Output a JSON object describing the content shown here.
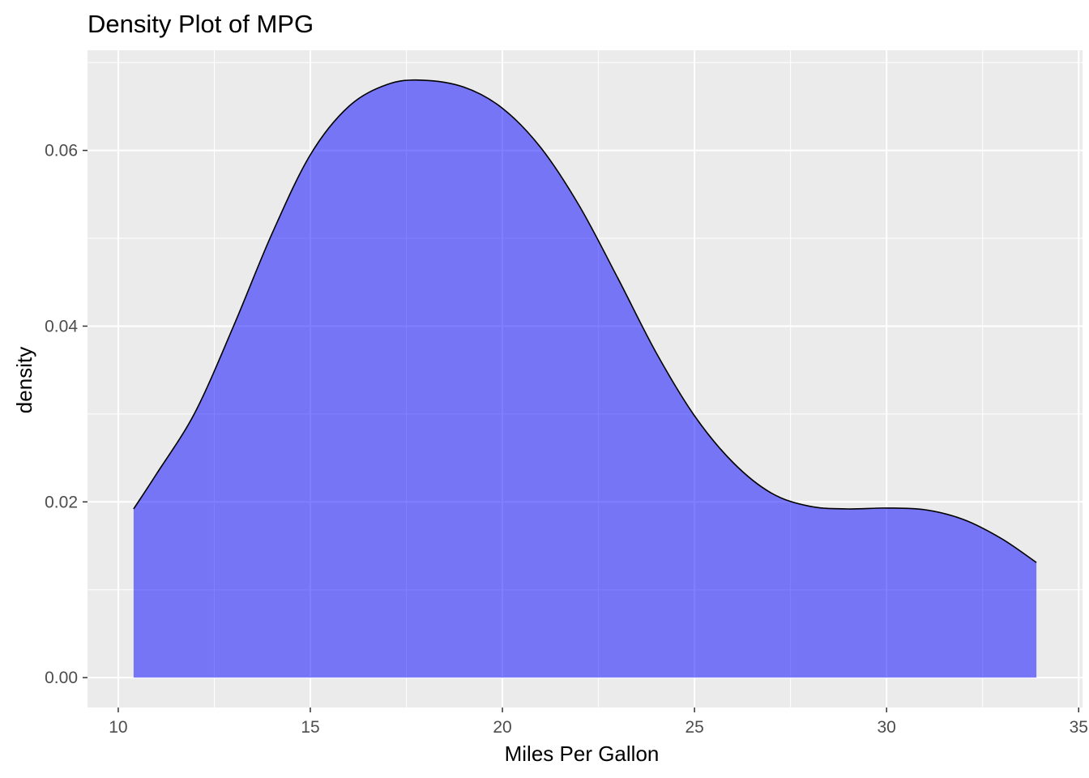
{
  "chart_data": {
    "type": "area",
    "title": "Density Plot of MPG",
    "xlabel": "Miles Per Gallon",
    "ylabel": "density",
    "xlim": [
      9.2,
      35.1
    ],
    "ylim": [
      -0.0034,
      0.0714
    ],
    "x_ticks": [
      10,
      15,
      20,
      25,
      30,
      35
    ],
    "y_ticks": [
      0.0,
      0.02,
      0.04,
      0.06
    ],
    "x_tick_labels": [
      "10",
      "15",
      "20",
      "25",
      "30",
      "35"
    ],
    "y_tick_labels": [
      "0.00",
      "0.02",
      "0.04",
      "0.06"
    ],
    "grid": true,
    "panel_background": "#ebebeb",
    "fill_color": "#0000ff",
    "fill_opacity": 0.5,
    "line_color": "#000000",
    "x": [
      10.4,
      11.0,
      12.0,
      13.0,
      14.0,
      15.0,
      16.0,
      17.0,
      17.9,
      19.0,
      20.0,
      21.0,
      22.0,
      23.0,
      24.0,
      25.0,
      26.0,
      27.0,
      28.0,
      29.0,
      30.0,
      31.0,
      32.0,
      33.0,
      33.9
    ],
    "y": [
      0.0192,
      0.0232,
      0.0302,
      0.04,
      0.0505,
      0.0595,
      0.065,
      0.0675,
      0.068,
      0.0672,
      0.0648,
      0.0603,
      0.0537,
      0.0455,
      0.037,
      0.0298,
      0.0245,
      0.021,
      0.0195,
      0.0192,
      0.0193,
      0.0191,
      0.018,
      0.0158,
      0.0131
    ]
  }
}
